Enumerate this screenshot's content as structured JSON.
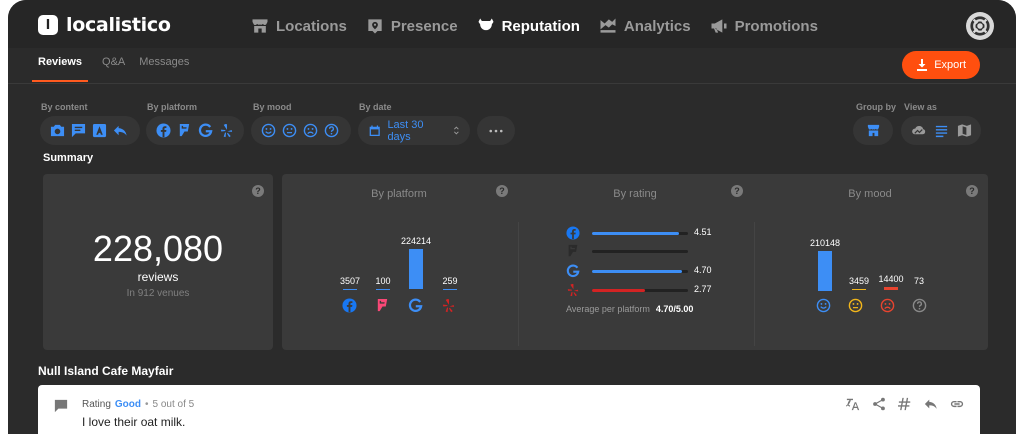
{
  "app": {
    "name": "localistico",
    "logo_letter": "l"
  },
  "nav": [
    {
      "label": "Locations",
      "icon": "store-icon",
      "active": false
    },
    {
      "label": "Presence",
      "icon": "pin-icon",
      "active": false
    },
    {
      "label": "Reputation",
      "icon": "badge-star-icon",
      "active": true
    },
    {
      "label": "Analytics",
      "icon": "chart-icon",
      "active": false
    },
    {
      "label": "Promotions",
      "icon": "megaphone-icon",
      "active": false
    }
  ],
  "subnav": {
    "tabs": [
      {
        "label": "Reviews",
        "active": true
      },
      {
        "label": "Q&A",
        "active": false
      },
      {
        "label": "Messages",
        "active": false
      }
    ],
    "export_label": "Export"
  },
  "filters": {
    "by_content": "By content",
    "by_platform": "By platform",
    "by_mood": "By mood",
    "by_date": "By date",
    "date_value": "Last 30 days",
    "group_by": "Group by",
    "view_as": "View as"
  },
  "summary": {
    "title": "Summary",
    "total": "228,080",
    "total_label": "reviews",
    "total_sub": "In 912 venues",
    "by_platform_title": "By platform",
    "by_rating_title": "By rating",
    "by_mood_title": "By mood",
    "platform_counts": [
      {
        "platform": "facebook",
        "value": "3507"
      },
      {
        "platform": "foursquare",
        "value": "100"
      },
      {
        "platform": "google",
        "value": "224214"
      },
      {
        "platform": "yelp",
        "value": "259"
      }
    ],
    "ratings": [
      {
        "platform": "facebook",
        "value": "4.51",
        "fraction": 0.902
      },
      {
        "platform": "foursquare",
        "value": "",
        "fraction": 0
      },
      {
        "platform": "google",
        "value": "4.70",
        "fraction": 0.94
      },
      {
        "platform": "yelp",
        "value": "2.77",
        "fraction": 0.554
      }
    ],
    "average_label": "Average per platform",
    "average_value": "4.70/5.00",
    "mood_counts": [
      {
        "mood": "positive",
        "value": "210148"
      },
      {
        "mood": "neutral",
        "value": "3459"
      },
      {
        "mood": "negative",
        "value": "14400"
      },
      {
        "mood": "unknown",
        "value": "73"
      }
    ]
  },
  "venue": {
    "name": "Null Island Cafe Mayfair",
    "review": {
      "rating_label": "Rating",
      "rating_word": "Good",
      "separator": "•",
      "rating_score": "5 out of 5",
      "text": "I love their oat milk."
    }
  },
  "colors": {
    "accent": "#ff4f0f",
    "blue": "#3d8ef5",
    "facebook": "#1877f2",
    "foursquare": "#f94877",
    "google": "#3d8ef5",
    "yelp": "#d32323",
    "mood_neutral": "#f2b61b",
    "mood_negative": "#e8442f"
  }
}
